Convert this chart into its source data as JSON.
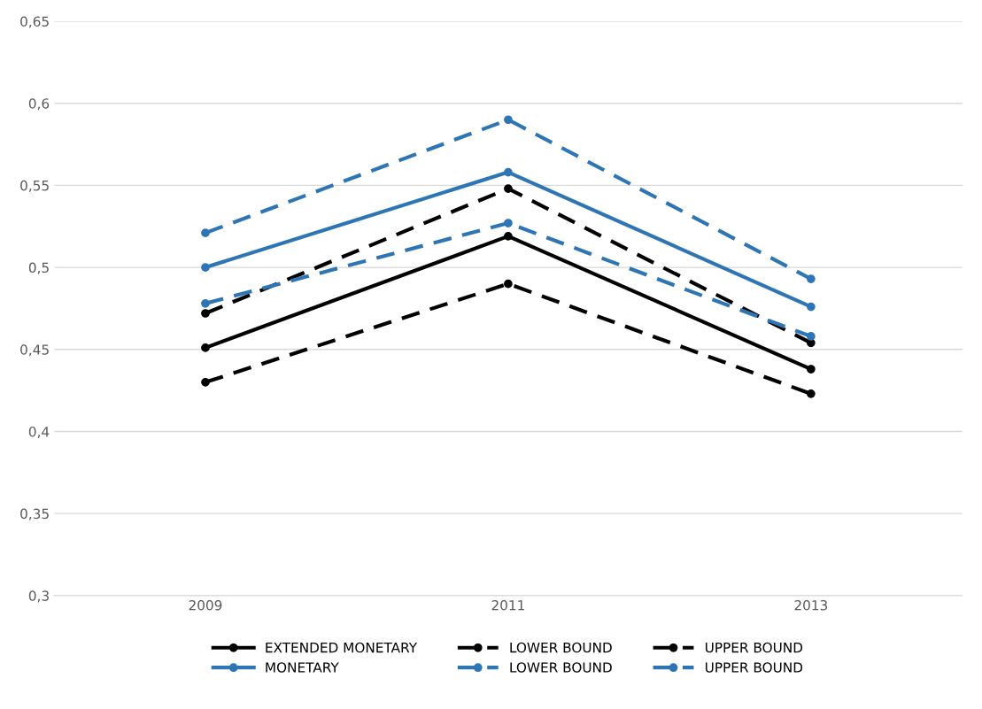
{
  "chart_data": {
    "type": "line",
    "categories": [
      "2009",
      "2011",
      "2013"
    ],
    "series": [
      {
        "name": "EXTENDED MONETARY",
        "color": "#000000",
        "line_style": "solid",
        "values": [
          0.451,
          0.519,
          0.438
        ]
      },
      {
        "name": "LOWER BOUND",
        "color": "#000000",
        "line_style": "dashed",
        "values": [
          0.43,
          0.49,
          0.423
        ]
      },
      {
        "name": "UPPER BOUND",
        "color": "#000000",
        "line_style": "dashed",
        "values": [
          0.472,
          0.548,
          0.454
        ]
      },
      {
        "name": "MONETARY",
        "color": "#2e75b6",
        "line_style": "solid",
        "values": [
          0.5,
          0.558,
          0.476
        ]
      },
      {
        "name": "LOWER BOUND",
        "color": "#2e75b6",
        "line_style": "dashed",
        "values": [
          0.478,
          0.527,
          0.458
        ]
      },
      {
        "name": "UPPER BOUND",
        "color": "#2e75b6",
        "line_style": "dashed",
        "values": [
          0.521,
          0.59,
          0.493
        ]
      }
    ],
    "ylim": [
      0.3,
      0.65
    ],
    "yticks": [
      {
        "value": 0.3,
        "label": "0,3"
      },
      {
        "value": 0.35,
        "label": "0,35"
      },
      {
        "value": 0.4,
        "label": "0,4"
      },
      {
        "value": 0.45,
        "label": "0,45"
      },
      {
        "value": 0.5,
        "label": "0,5"
      },
      {
        "value": 0.55,
        "label": "0,55"
      },
      {
        "value": 0.6,
        "label": "0,6"
      },
      {
        "value": 0.65,
        "label": "0,65"
      }
    ],
    "grid": "y",
    "legend": "bottom",
    "marker": "circle"
  }
}
